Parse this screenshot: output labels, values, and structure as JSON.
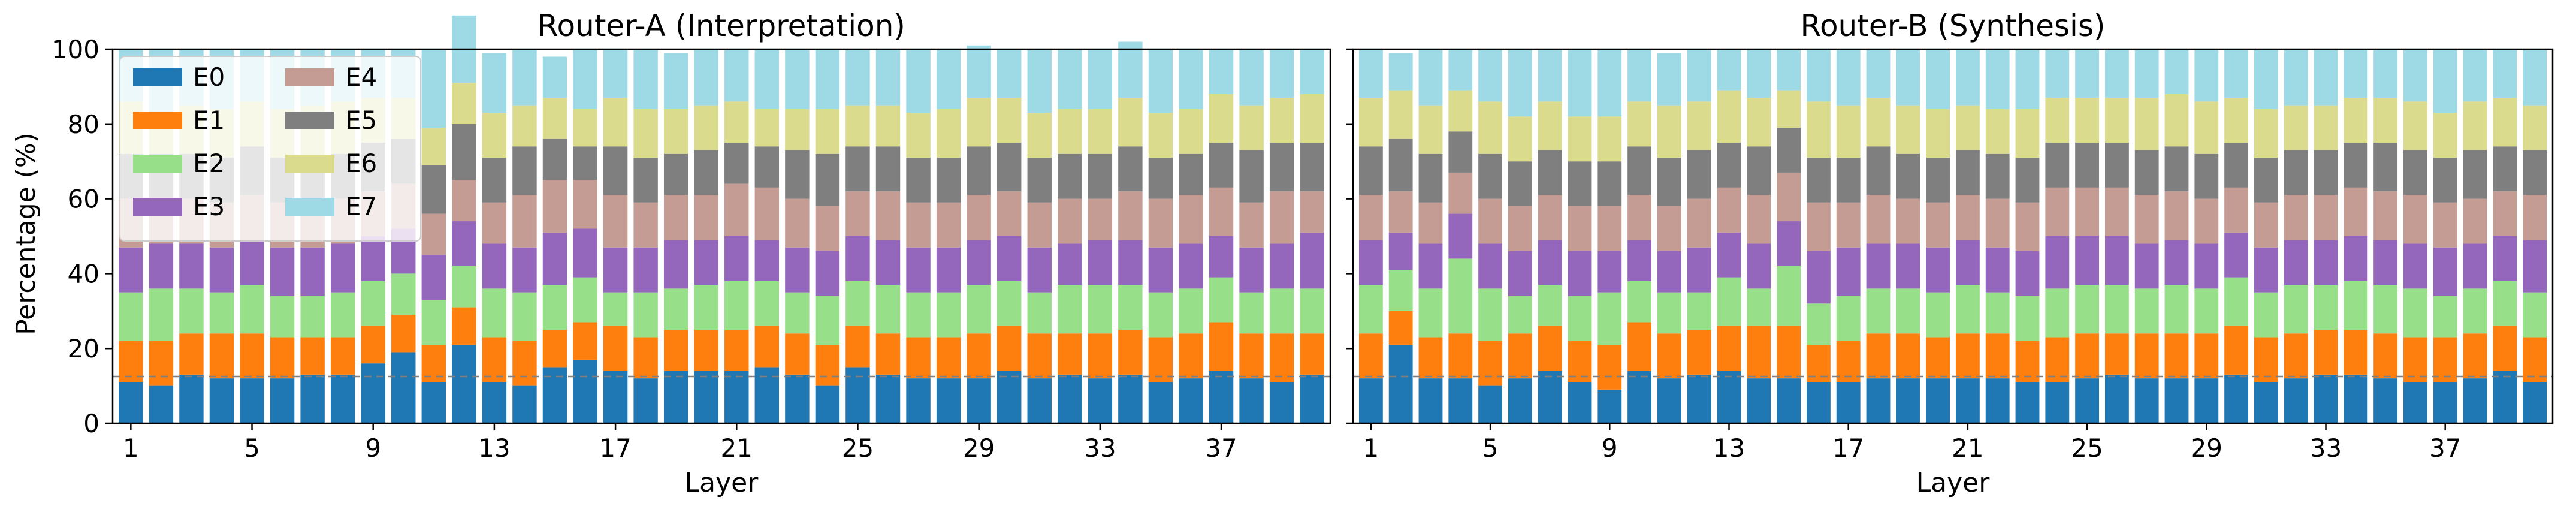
{
  "chart_data": [
    {
      "type": "bar",
      "stacked": true,
      "title": "Router-A (Interpretation)",
      "xlabel": "Layer",
      "ylabel": "Percentage (%)",
      "ylim": [
        0,
        100
      ],
      "yticks": [
        0,
        20,
        40,
        60,
        80,
        100
      ],
      "xticks": [
        1,
        5,
        9,
        13,
        17,
        21,
        25,
        29,
        33,
        37
      ],
      "categories": [
        1,
        2,
        3,
        4,
        5,
        6,
        7,
        8,
        9,
        10,
        11,
        12,
        13,
        14,
        15,
        16,
        17,
        18,
        19,
        20,
        21,
        22,
        23,
        24,
        25,
        26,
        27,
        28,
        29,
        30,
        31,
        32,
        33,
        34,
        35,
        36,
        37,
        38,
        39,
        40
      ],
      "reference_line": 12.5,
      "legend": {
        "location": "upper-left",
        "columns": 2
      },
      "series": [
        {
          "name": "E0",
          "color": "#1f77b4",
          "values": [
            11,
            10,
            13,
            12,
            12,
            12,
            13,
            13,
            16,
            19,
            11,
            21,
            11,
            10,
            15,
            17,
            14,
            12,
            14,
            14,
            14,
            15,
            13,
            10,
            15,
            13,
            12,
            12,
            12,
            14,
            12,
            13,
            12,
            13,
            11,
            12,
            14,
            12,
            11,
            13
          ]
        },
        {
          "name": "E1",
          "color": "#ff7f0e",
          "values": [
            11,
            12,
            11,
            12,
            12,
            11,
            10,
            10,
            10,
            10,
            10,
            10,
            12,
            12,
            10,
            10,
            12,
            11,
            11,
            11,
            11,
            11,
            11,
            11,
            11,
            11,
            11,
            11,
            12,
            12,
            12,
            11,
            12,
            12,
            12,
            12,
            13,
            12,
            13,
            11
          ]
        },
        {
          "name": "E2",
          "color": "#98df8a",
          "values": [
            13,
            14,
            12,
            11,
            13,
            11,
            11,
            12,
            12,
            11,
            12,
            11,
            13,
            13,
            12,
            12,
            9,
            12,
            11,
            12,
            13,
            12,
            11,
            13,
            12,
            13,
            12,
            12,
            13,
            12,
            11,
            13,
            13,
            12,
            12,
            12,
            12,
            11,
            12,
            12
          ]
        },
        {
          "name": "E3",
          "color": "#9467bd",
          "values": [
            12,
            12,
            12,
            12,
            12,
            13,
            13,
            13,
            12,
            12,
            12,
            12,
            12,
            12,
            14,
            13,
            12,
            12,
            13,
            12,
            12,
            11,
            12,
            12,
            12,
            12,
            12,
            12,
            12,
            12,
            12,
            11,
            12,
            12,
            12,
            12,
            11,
            12,
            12,
            15
          ]
        },
        {
          "name": "E4",
          "color": "#c49c94",
          "values": [
            13,
            12,
            12,
            12,
            12,
            12,
            12,
            12,
            12,
            12,
            11,
            11,
            11,
            14,
            14,
            13,
            14,
            12,
            12,
            12,
            14,
            14,
            13,
            12,
            12,
            13,
            12,
            12,
            12,
            12,
            12,
            12,
            11,
            13,
            13,
            13,
            13,
            12,
            14,
            11
          ]
        },
        {
          "name": "E5",
          "color": "#7f7f7f",
          "values": [
            12,
            12,
            12,
            12,
            13,
            12,
            12,
            12,
            13,
            12,
            13,
            15,
            12,
            13,
            11,
            9,
            13,
            12,
            11,
            12,
            11,
            11,
            13,
            14,
            12,
            12,
            12,
            12,
            13,
            13,
            12,
            12,
            12,
            12,
            11,
            11,
            12,
            14,
            13,
            13
          ]
        },
        {
          "name": "E6",
          "color": "#dbdb8d",
          "values": [
            14,
            10,
            13,
            13,
            12,
            13,
            14,
            14,
            12,
            11,
            10,
            11,
            12,
            11,
            11,
            10,
            13,
            13,
            12,
            12,
            11,
            10,
            11,
            12,
            11,
            11,
            12,
            13,
            13,
            12,
            12,
            12,
            12,
            13,
            12,
            12,
            13,
            12,
            12,
            13
          ]
        },
        {
          "name": "E7",
          "color": "#9edae5",
          "values": [
            14,
            18,
            15,
            16,
            14,
            16,
            15,
            14,
            13,
            13,
            21,
            18,
            16,
            15,
            11,
            16,
            13,
            16,
            15,
            15,
            14,
            16,
            16,
            16,
            15,
            15,
            17,
            16,
            14,
            13,
            17,
            16,
            16,
            15,
            17,
            16,
            12,
            15,
            13,
            12
          ]
        }
      ]
    },
    {
      "type": "bar",
      "stacked": true,
      "title": "Router-B (Synthesis)",
      "xlabel": "Layer",
      "ylabel": "",
      "ylim": [
        0,
        100
      ],
      "yticks": [
        0,
        20,
        40,
        60,
        80,
        100
      ],
      "xticks": [
        1,
        5,
        9,
        13,
        17,
        21,
        25,
        29,
        33,
        37
      ],
      "categories": [
        1,
        2,
        3,
        4,
        5,
        6,
        7,
        8,
        9,
        10,
        11,
        12,
        13,
        14,
        15,
        16,
        17,
        18,
        19,
        20,
        21,
        22,
        23,
        24,
        25,
        26,
        27,
        28,
        29,
        30,
        31,
        32,
        33,
        34,
        35,
        36,
        37,
        38,
        39,
        40
      ],
      "reference_line": 12.5,
      "series": [
        {
          "name": "E0",
          "color": "#1f77b4",
          "values": [
            12,
            21,
            12,
            12,
            10,
            12,
            14,
            11,
            9,
            14,
            12,
            13,
            14,
            12,
            12,
            11,
            11,
            12,
            12,
            12,
            12,
            12,
            11,
            11,
            12,
            13,
            12,
            12,
            12,
            13,
            11,
            12,
            13,
            13,
            12,
            11,
            11,
            12,
            14,
            11
          ]
        },
        {
          "name": "E1",
          "color": "#ff7f0e",
          "values": [
            12,
            9,
            11,
            12,
            12,
            12,
            12,
            11,
            12,
            13,
            12,
            12,
            12,
            14,
            14,
            10,
            11,
            12,
            12,
            11,
            12,
            12,
            11,
            12,
            12,
            11,
            12,
            12,
            12,
            13,
            12,
            12,
            12,
            12,
            12,
            12,
            12,
            12,
            12,
            12
          ]
        },
        {
          "name": "E2",
          "color": "#98df8a",
          "values": [
            13,
            11,
            13,
            20,
            14,
            10,
            11,
            12,
            14,
            11,
            11,
            10,
            13,
            10,
            16,
            11,
            12,
            12,
            12,
            12,
            13,
            11,
            12,
            13,
            13,
            13,
            12,
            13,
            12,
            13,
            12,
            13,
            12,
            13,
            13,
            13,
            11,
            12,
            12,
            12
          ]
        },
        {
          "name": "E3",
          "color": "#9467bd",
          "values": [
            12,
            10,
            12,
            12,
            12,
            12,
            12,
            12,
            11,
            11,
            11,
            12,
            12,
            12,
            12,
            14,
            13,
            12,
            12,
            12,
            12,
            12,
            12,
            14,
            13,
            13,
            12,
            12,
            12,
            12,
            12,
            12,
            12,
            12,
            12,
            12,
            13,
            12,
            12,
            14
          ]
        },
        {
          "name": "E4",
          "color": "#c49c94",
          "values": [
            12,
            11,
            11,
            11,
            12,
            12,
            12,
            12,
            12,
            12,
            12,
            13,
            12,
            13,
            13,
            13,
            12,
            13,
            12,
            12,
            12,
            13,
            13,
            13,
            13,
            13,
            13,
            13,
            12,
            12,
            12,
            12,
            12,
            13,
            13,
            13,
            12,
            12,
            12,
            12
          ]
        },
        {
          "name": "E5",
          "color": "#7f7f7f",
          "values": [
            13,
            14,
            13,
            11,
            12,
            12,
            12,
            12,
            12,
            13,
            13,
            13,
            12,
            13,
            12,
            12,
            12,
            13,
            12,
            12,
            12,
            12,
            12,
            12,
            12,
            12,
            12,
            12,
            12,
            12,
            12,
            12,
            12,
            12,
            13,
            12,
            12,
            13,
            12,
            12
          ]
        },
        {
          "name": "E6",
          "color": "#dbdb8d",
          "values": [
            13,
            13,
            13,
            11,
            14,
            12,
            13,
            12,
            12,
            12,
            14,
            13,
            14,
            13,
            10,
            15,
            14,
            13,
            13,
            13,
            12,
            12,
            13,
            12,
            12,
            12,
            14,
            14,
            14,
            12,
            13,
            12,
            12,
            12,
            12,
            13,
            12,
            13,
            13,
            12
          ]
        },
        {
          "name": "E7",
          "color": "#9edae5",
          "values": [
            13,
            10,
            15,
            11,
            14,
            18,
            14,
            18,
            18,
            14,
            14,
            14,
            11,
            13,
            11,
            14,
            15,
            13,
            15,
            16,
            15,
            16,
            16,
            13,
            13,
            13,
            13,
            12,
            14,
            13,
            16,
            15,
            15,
            13,
            13,
            14,
            17,
            14,
            13,
            15
          ]
        }
      ]
    }
  ]
}
